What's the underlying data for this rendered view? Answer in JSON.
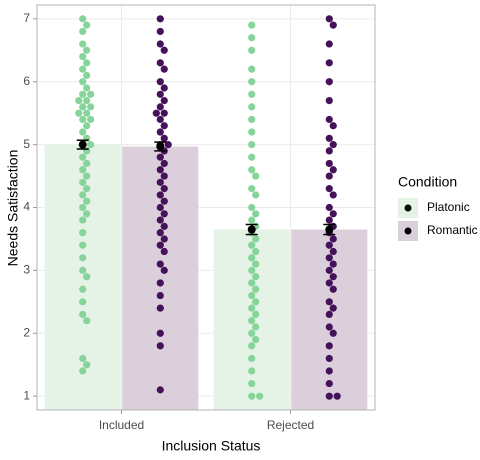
{
  "chart_data": {
    "type": "bar-swarm",
    "xlabel": "Inclusion Status",
    "ylabel": "Needs Satisfaction",
    "categories": [
      "Included",
      "Rejected"
    ],
    "legend_title": "Condition",
    "legend": "right",
    "grid": true,
    "ylim": [
      0.78,
      7.22
    ],
    "yticks": [
      1,
      2,
      3,
      4,
      5,
      6,
      7
    ],
    "series": [
      {
        "name": "Platonic",
        "color": "#86d49a",
        "bar_color": "#e4f3e6",
        "values": [
          5.0,
          3.65
        ],
        "errors": [
          0.07,
          0.08
        ],
        "points": [
          [
            7.0,
            6.9,
            6.8,
            6.6,
            6.5,
            6.4,
            6.3,
            6.2,
            6.1,
            6.0,
            5.9,
            5.8,
            5.8,
            5.7,
            5.7,
            5.6,
            5.6,
            5.5,
            5.5,
            5.4,
            5.4,
            5.3,
            5.2,
            5.1,
            5.0,
            5.0,
            4.9,
            4.8,
            4.7,
            4.6,
            4.5,
            4.4,
            4.3,
            4.2,
            4.1,
            4.0,
            3.9,
            3.8,
            3.6,
            3.4,
            3.2,
            3.0,
            2.9,
            2.7,
            2.5,
            2.3,
            2.2,
            1.6,
            1.5,
            1.4
          ],
          [
            6.9,
            6.7,
            6.5,
            6.2,
            6.0,
            5.8,
            5.6,
            5.4,
            5.2,
            5.0,
            4.8,
            4.6,
            4.5,
            4.3,
            4.2,
            4.0,
            3.9,
            3.8,
            3.7,
            3.6,
            3.5,
            3.4,
            3.3,
            3.2,
            3.1,
            3.0,
            2.9,
            2.8,
            2.7,
            2.6,
            2.5,
            2.4,
            2.3,
            2.2,
            2.1,
            2.0,
            1.9,
            1.8,
            1.6,
            1.4,
            1.2,
            1.0,
            1.0
          ]
        ]
      },
      {
        "name": "Romantic",
        "color": "#45125a",
        "bar_color": "#dbcfdc",
        "values": [
          4.97,
          3.65
        ],
        "errors": [
          0.07,
          0.08
        ],
        "points": [
          [
            7.0,
            6.8,
            6.6,
            6.5,
            6.3,
            6.2,
            6.0,
            5.9,
            5.8,
            5.7,
            5.6,
            5.5,
            5.5,
            5.4,
            5.3,
            5.2,
            5.1,
            5.0,
            5.0,
            4.9,
            4.8,
            4.7,
            4.6,
            4.5,
            4.4,
            4.3,
            4.2,
            4.1,
            4.0,
            3.9,
            3.8,
            3.7,
            3.6,
            3.5,
            3.4,
            3.3,
            3.1,
            3.0,
            2.8,
            2.6,
            2.4,
            2.0,
            1.8,
            1.1
          ],
          [
            7.0,
            6.9,
            6.6,
            6.3,
            6.0,
            5.7,
            5.4,
            5.3,
            5.1,
            5.0,
            4.9,
            4.7,
            4.6,
            4.5,
            4.3,
            4.2,
            4.0,
            3.9,
            3.8,
            3.7,
            3.6,
            3.5,
            3.4,
            3.3,
            3.2,
            3.1,
            3.0,
            2.9,
            2.8,
            2.7,
            2.5,
            2.4,
            2.3,
            2.1,
            2.0,
            1.8,
            1.6,
            1.4,
            1.2,
            1.0,
            1.0
          ]
        ]
      }
    ]
  }
}
